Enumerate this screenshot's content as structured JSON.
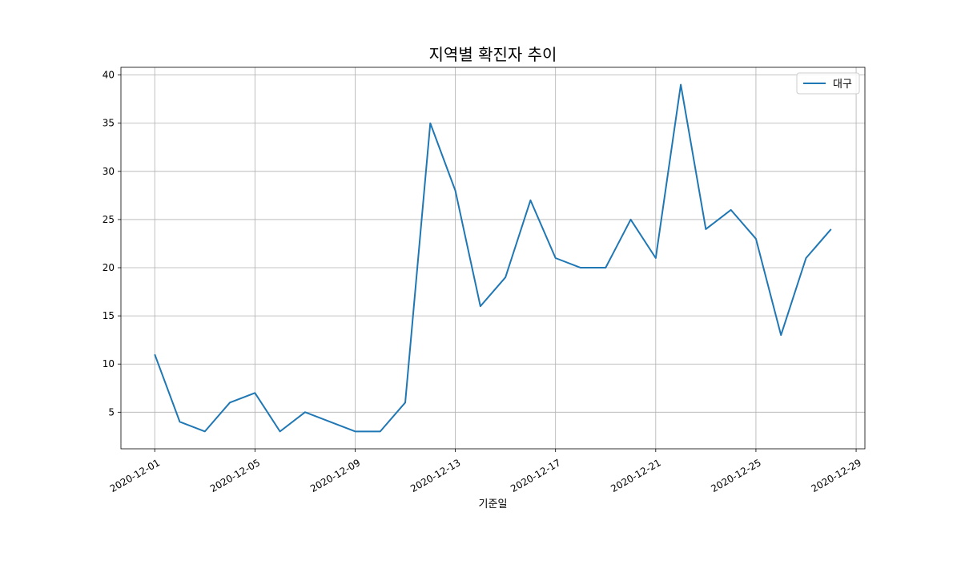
{
  "chart_data": {
    "type": "line",
    "title": "지역별 확진자 추이",
    "xlabel": "기준일",
    "ylabel": "",
    "x": [
      "2020-12-01",
      "2020-12-02",
      "2020-12-03",
      "2020-12-04",
      "2020-12-05",
      "2020-12-06",
      "2020-12-07",
      "2020-12-08",
      "2020-12-09",
      "2020-12-10",
      "2020-12-11",
      "2020-12-12",
      "2020-12-13",
      "2020-12-14",
      "2020-12-15",
      "2020-12-16",
      "2020-12-17",
      "2020-12-18",
      "2020-12-19",
      "2020-12-20",
      "2020-12-21",
      "2020-12-22",
      "2020-12-23",
      "2020-12-24",
      "2020-12-25",
      "2020-12-26",
      "2020-12-27",
      "2020-12-28"
    ],
    "series": [
      {
        "name": "대구",
        "color": "#1f77b4",
        "values": [
          11,
          4,
          3,
          6,
          7,
          3,
          5,
          4,
          3,
          3,
          6,
          35,
          28,
          16,
          19,
          27,
          21,
          20,
          20,
          25,
          21,
          39,
          24,
          26,
          23,
          13,
          21,
          24
        ]
      }
    ],
    "xticks": [
      "2020-12-01",
      "2020-12-05",
      "2020-12-09",
      "2020-12-13",
      "2020-12-17",
      "2020-12-21",
      "2020-12-25",
      "2020-12-29"
    ],
    "yticks": [
      5,
      10,
      15,
      20,
      25,
      30,
      35,
      40
    ],
    "xlim": [
      "2020-11-29.65",
      "2020-12-29.35"
    ],
    "ylim": [
      1.2,
      40.8
    ],
    "grid": true,
    "legend_position": "top-right",
    "colors": {
      "grid": "#b0b0b0",
      "axes": "#000000"
    }
  }
}
